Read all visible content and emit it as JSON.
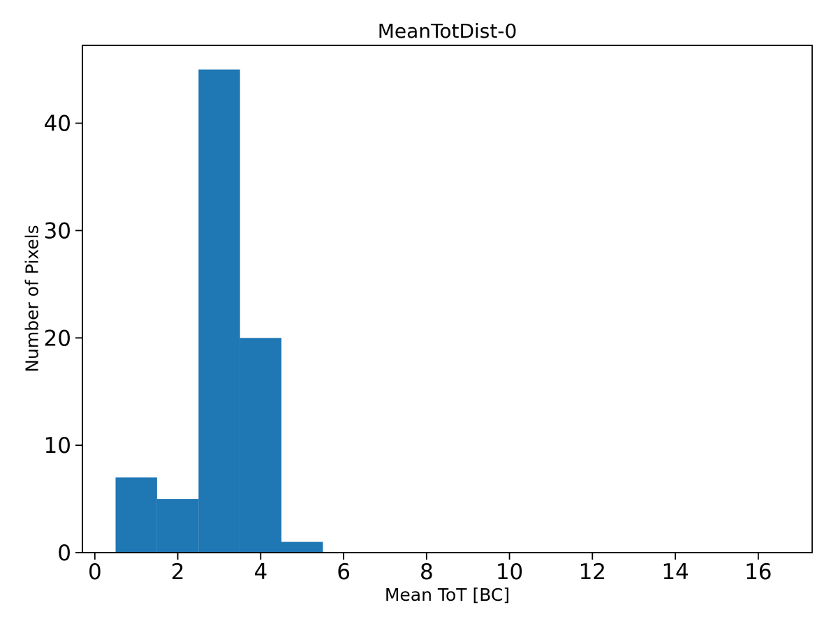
{
  "figure": {
    "background": "#ffffff",
    "text_color": "#000000"
  },
  "chart_data": {
    "type": "bar",
    "subtype": "histogram",
    "title": "MeanTotDist-0",
    "xlabel": "Mean ToT [BC]",
    "ylabel": "Number of Pixels",
    "bar_color": "#1f77b4",
    "axis_color": "#000000",
    "bin_edges": [
      0.5,
      1.5,
      2.5,
      3.5,
      4.5,
      5.5
    ],
    "counts": [
      7,
      5,
      45,
      20,
      1
    ],
    "xticks": [
      0,
      2,
      4,
      6,
      8,
      10,
      12,
      14,
      16
    ],
    "yticks": [
      0,
      10,
      20,
      30,
      40
    ],
    "xlim": [
      -0.3,
      17.3
    ],
    "ylim": [
      0,
      47.25
    ],
    "grid": false,
    "legend": null
  }
}
